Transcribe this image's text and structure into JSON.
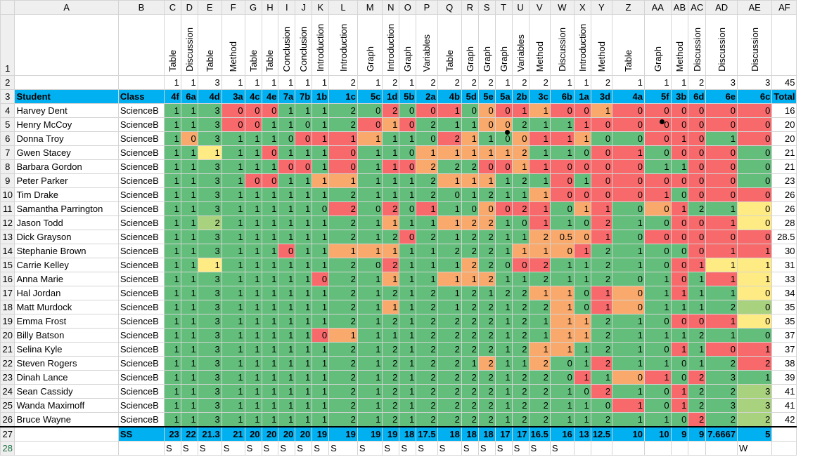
{
  "columns": [
    "A",
    "B",
    "C",
    "D",
    "E",
    "F",
    "G",
    "H",
    "I",
    "J",
    "K",
    "L",
    "M",
    "N",
    "O",
    "P",
    "Q",
    "R",
    "S",
    "T",
    "U",
    "V",
    "W",
    "X",
    "Y",
    "Z",
    "AA",
    "AB",
    "AC",
    "AD",
    "AE",
    "AF"
  ],
  "question_types": [
    "",
    "",
    "Table",
    "Discussion",
    "Table",
    "Method",
    "Table",
    "Table",
    "Conclusion",
    "Conclusion",
    "Introduction",
    "Introduction",
    "Graph",
    "Introduction",
    "Graph",
    "Variables",
    "Table",
    "Graph",
    "Graph",
    "Graph",
    "Variables",
    "Method",
    "Discussion",
    "Introduction",
    "Method",
    "Table",
    "Graph",
    "Method",
    "Discussion",
    "Discussion",
    "Discussion",
    ""
  ],
  "max_marks": [
    "",
    "",
    "1",
    "1",
    "3",
    "1",
    "1",
    "1",
    "1",
    "1",
    "1",
    "2",
    "1",
    "2",
    "1",
    "2",
    "2",
    "2",
    "2",
    "1",
    "2",
    "2",
    "1",
    "1",
    "2",
    "1",
    "1",
    "1",
    "2",
    "3",
    "3",
    "45"
  ],
  "header": {
    "student": "Student",
    "class": "Class",
    "codes": [
      "4f",
      "6a",
      "4d",
      "3a",
      "4c",
      "4e",
      "7a",
      "7b",
      "1b",
      "1c",
      "5c",
      "1d",
      "5b",
      "2a",
      "4b",
      "5d",
      "5e",
      "5a",
      "2b",
      "3c",
      "6b",
      "1a",
      "3d",
      "4a",
      "5f",
      "3b",
      "6d",
      "6e",
      "6c"
    ],
    "total": "Total"
  },
  "students": [
    {
      "row": "4",
      "name": "Harvey Dent",
      "class": "ScienceB",
      "scores": [
        "1",
        "1",
        "3",
        "0",
        "0",
        "0",
        "1",
        "1",
        "1",
        "2",
        "0",
        "2",
        "0",
        "0",
        "1",
        "0",
        "0",
        "0",
        "1",
        "1",
        "0",
        "0",
        "1",
        "0",
        "0",
        "0",
        "0",
        "0",
        "0"
      ],
      "colors": "gggrrrgggggrgrrgorrorrorrrrrr",
      "total": "16"
    },
    {
      "row": "5",
      "name": "Henry McCoy",
      "class": "ScienceB",
      "scores": [
        "1",
        "1",
        "3",
        "0",
        "0",
        "1",
        "1",
        "0",
        "1",
        "2",
        "0",
        "1",
        "0",
        "2",
        "1",
        "1",
        "0",
        "0",
        "2",
        "1",
        "1",
        "1",
        "0",
        "0",
        "0",
        "0",
        "0",
        "0",
        "0"
      ],
      "colors": "gggrrgggggrorgggoogggrrrrrrrr",
      "total": "20"
    },
    {
      "row": "6",
      "name": "Donna Troy",
      "class": "ScienceB",
      "scores": [
        "1",
        "0",
        "3",
        "1",
        "1",
        "1",
        "0",
        "0",
        "1",
        "1",
        "1",
        "1",
        "1",
        "0",
        "2",
        "1",
        "1",
        "0",
        "0",
        "1",
        "1",
        "1",
        "0",
        "0",
        "0",
        "1",
        "0",
        "1",
        "0"
      ],
      "colors": "gogggggrrrogggroggorroggrrrgryr",
      "total": "20"
    },
    {
      "row": "7",
      "name": "Gwen Stacey",
      "class": "ScienceB",
      "scores": [
        "1",
        "1",
        "1",
        "1",
        "1",
        "0",
        "1",
        "1",
        "1",
        "0",
        "1",
        "1",
        "0",
        "1",
        "1",
        "1",
        "1",
        "1",
        "2",
        "1",
        "1",
        "0",
        "0",
        "1",
        "0",
        "0",
        "0",
        "0",
        "0"
      ],
      "colors": "ggyggrgggrgggoooooogggrrgrrr",
      "total": "21"
    },
    {
      "row": "8",
      "name": "Barbara Gordon",
      "class": "ScienceB",
      "scores": [
        "1",
        "1",
        "3",
        "1",
        "1",
        "1",
        "0",
        "0",
        "1",
        "0",
        "1",
        "1",
        "0",
        "2",
        "2",
        "2",
        "0",
        "0",
        "1",
        "1",
        "0",
        "0",
        "0",
        "0",
        "1",
        "1",
        "0",
        "0",
        "0"
      ],
      "colors": "ggggggrrgrgrroggrrorrrrrggrr",
      "total": "21"
    },
    {
      "row": "9",
      "name": "Peter Parker",
      "class": "ScienceB",
      "scores": [
        "1",
        "1",
        "3",
        "1",
        "0",
        "0",
        "1",
        "1",
        "1",
        "1",
        "1",
        "1",
        "1",
        "2",
        "1",
        "1",
        "1",
        "1",
        "2",
        "1",
        "0",
        "1",
        "0",
        "0",
        "0",
        "0",
        "0",
        "0",
        "0"
      ],
      "colors": "ggggrrggooggggooogggrgrrrrrr",
      "total": "23"
    },
    {
      "row": "10",
      "name": "Tim Drake",
      "class": "ScienceB",
      "scores": [
        "1",
        "1",
        "3",
        "1",
        "1",
        "1",
        "1",
        "1",
        "1",
        "2",
        "1",
        "1",
        "1",
        "2",
        "0",
        "1",
        "2",
        "1",
        "1",
        "1",
        "0",
        "0",
        "0",
        "0",
        "1",
        "0",
        "0",
        "0",
        "0"
      ],
      "colors": "gggggggggggggggggggorrrrrgrrrr",
      "total": "26"
    },
    {
      "row": "11",
      "name": "Samantha Parrington",
      "class": "ScienceB",
      "scores": [
        "1",
        "1",
        "3",
        "1",
        "1",
        "1",
        "1",
        "1",
        "0",
        "2",
        "0",
        "2",
        "0",
        "1",
        "1",
        "0",
        "0",
        "0",
        "2",
        "1",
        "0",
        "1",
        "1",
        "0",
        "0",
        "1",
        "2",
        "1",
        "0"
      ],
      "colors": "gggggggggrgrgrggorrrgorgorggyr",
      "total": "26"
    },
    {
      "row": "12",
      "name": "Jason Todd",
      "class": "ScienceB",
      "scores": [
        "1",
        "1",
        "2",
        "1",
        "1",
        "1",
        "1",
        "1",
        "1",
        "2",
        "1",
        "1",
        "1",
        "1",
        "1",
        "2",
        "2",
        "1",
        "0",
        "1",
        "1",
        "0",
        "2",
        "1",
        "0",
        "0",
        "0",
        "1",
        "0"
      ],
      "colors": "gglggggggggoggoooggrggrggrrryr",
      "total": "28"
    },
    {
      "row": "13",
      "name": "Dick Grayson",
      "class": "ScienceB",
      "scores": [
        "1",
        "1",
        "3",
        "1",
        "1",
        "1",
        "1",
        "1",
        "1",
        "2",
        "1",
        "2",
        "0",
        "2",
        "1",
        "2",
        "2",
        "1",
        "1",
        "2",
        "0.5",
        "0",
        "1",
        "0",
        "0",
        "0",
        "0",
        "0",
        "0"
      ],
      "colors": "ggggggggggggrggggggooorgrrrrrr",
      "total": "28.5"
    },
    {
      "row": "14",
      "name": "Stephanie Brown",
      "class": "ScienceB",
      "scores": [
        "1",
        "1",
        "3",
        "1",
        "1",
        "1",
        "0",
        "1",
        "1",
        "1",
        "1",
        "1",
        "1",
        "1",
        "2",
        "2",
        "2",
        "1",
        "1",
        "1",
        "0",
        "1",
        "2",
        "1",
        "0",
        "0",
        "0",
        "1",
        "1"
      ],
      "colors": "ggggggrggoooggggggooorggggrrryy",
      "total": "30"
    },
    {
      "row": "15",
      "name": "Carrie Kelley",
      "class": "ScienceB",
      "scores": [
        "1",
        "1",
        "1",
        "1",
        "1",
        "1",
        "1",
        "1",
        "1",
        "2",
        "0",
        "2",
        "1",
        "1",
        "1",
        "2",
        "2",
        "0",
        "0",
        "2",
        "1",
        "1",
        "2",
        "1",
        "0",
        "0",
        "1",
        "1",
        "1"
      ],
      "colors": "ggyggggggggrgggoggrrgggggrryy",
      "total": "31"
    },
    {
      "row": "16",
      "name": "Anna Marie",
      "class": "ScienceB",
      "scores": [
        "1",
        "1",
        "3",
        "1",
        "1",
        "1",
        "1",
        "1",
        "0",
        "2",
        "1",
        "1",
        "1",
        "1",
        "1",
        "1",
        "2",
        "1",
        "1",
        "2",
        "1",
        "1",
        "2",
        "0",
        "1",
        "0",
        "1",
        "1",
        "1"
      ],
      "colors": "ggggggggrggoggoooggggggggrgryy",
      "total": "33"
    },
    {
      "row": "17",
      "name": "Hal Jordan",
      "class": "ScienceB",
      "scores": [
        "1",
        "1",
        "3",
        "1",
        "1",
        "1",
        "1",
        "1",
        "1",
        "2",
        "1",
        "2",
        "1",
        "2",
        "1",
        "2",
        "1",
        "2",
        "2",
        "1",
        "1",
        "0",
        "1",
        "0",
        "1",
        "1",
        "1",
        "1",
        "0"
      ],
      "colors": "gggggggggggggggggggoogrogrggyr",
      "total": "34"
    },
    {
      "row": "18",
      "name": "Matt Murdock",
      "class": "ScienceB",
      "scores": [
        "1",
        "1",
        "3",
        "1",
        "1",
        "1",
        "1",
        "1",
        "1",
        "2",
        "1",
        "1",
        "1",
        "2",
        "1",
        "2",
        "2",
        "1",
        "2",
        "2",
        "1",
        "0",
        "1",
        "0",
        "1",
        "1",
        "1",
        "2",
        "0"
      ],
      "colors": "gggggggggggoggggggggogrogggglr",
      "total": "35"
    },
    {
      "row": "19",
      "name": "Emma Frost",
      "class": "ScienceB",
      "scores": [
        "1",
        "1",
        "3",
        "1",
        "1",
        "1",
        "1",
        "1",
        "1",
        "2",
        "1",
        "2",
        "1",
        "2",
        "2",
        "2",
        "2",
        "1",
        "2",
        "1",
        "1",
        "1",
        "2",
        "1",
        "0",
        "0",
        "0",
        "1",
        "0"
      ],
      "colors": "ggggggggggggggggggggoogggrrryr",
      "total": "35"
    },
    {
      "row": "20",
      "name": "Billy Batson",
      "class": "ScienceB",
      "scores": [
        "1",
        "1",
        "3",
        "1",
        "1",
        "1",
        "1",
        "1",
        "0",
        "1",
        "1",
        "1",
        "1",
        "2",
        "2",
        "2",
        "2",
        "1",
        "2",
        "1",
        "1",
        "1",
        "2",
        "1",
        "1",
        "1",
        "2",
        "1",
        "0"
      ],
      "colors": "ggggggggroggggggggggoogggggggyr",
      "total": "37"
    },
    {
      "row": "21",
      "name": "Selina Kyle",
      "class": "ScienceB",
      "scores": [
        "1",
        "1",
        "3",
        "1",
        "1",
        "1",
        "1",
        "1",
        "1",
        "2",
        "1",
        "2",
        "1",
        "2",
        "2",
        "2",
        "2",
        "1",
        "2",
        "1",
        "1",
        "1",
        "2",
        "1",
        "0",
        "1",
        "1",
        "0",
        "1"
      ],
      "colors": "gggggggggggggggggggooggggrgrrg",
      "total": "37"
    },
    {
      "row": "22",
      "name": "Steven Rogers",
      "class": "ScienceB",
      "scores": [
        "1",
        "1",
        "3",
        "1",
        "1",
        "1",
        "1",
        "1",
        "1",
        "2",
        "1",
        "2",
        "1",
        "2",
        "2",
        "1",
        "2",
        "1",
        "1",
        "2",
        "0",
        "1",
        "2",
        "1",
        "1",
        "0",
        "1",
        "2",
        "2"
      ],
      "colors": "ggggggggggggggggoggoggrgggggrgll",
      "total": "38"
    },
    {
      "row": "23",
      "name": "Dinah Lance",
      "class": "ScienceB",
      "scores": [
        "1",
        "1",
        "3",
        "1",
        "1",
        "1",
        "1",
        "1",
        "1",
        "2",
        "1",
        "2",
        "1",
        "2",
        "2",
        "2",
        "2",
        "1",
        "2",
        "2",
        "0",
        "1",
        "1",
        "0",
        "1",
        "0",
        "2",
        "3",
        "1"
      ],
      "colors": "gggggggggggggggggggggrgorgrgggy",
      "total": "39"
    },
    {
      "row": "24",
      "name": "Sean Cassidy",
      "class": "ScienceB",
      "scores": [
        "1",
        "1",
        "3",
        "1",
        "1",
        "1",
        "1",
        "1",
        "1",
        "2",
        "1",
        "2",
        "1",
        "2",
        "2",
        "2",
        "2",
        "1",
        "2",
        "2",
        "1",
        "0",
        "2",
        "1",
        "0",
        "1",
        "2",
        "2",
        "3"
      ],
      "colors": "ggggggggggggggggggggggrggrgglg",
      "total": "41"
    },
    {
      "row": "25",
      "name": "Wanda Maximoff",
      "class": "ScienceB",
      "scores": [
        "1",
        "1",
        "3",
        "1",
        "1",
        "1",
        "1",
        "1",
        "1",
        "2",
        "1",
        "2",
        "1",
        "2",
        "2",
        "2",
        "2",
        "1",
        "2",
        "2",
        "1",
        "1",
        "0",
        "1",
        "0",
        "1",
        "2",
        "3",
        "3"
      ],
      "colors": "gggggggggggggggggggggggrgrgglg",
      "total": "41"
    },
    {
      "row": "26",
      "name": "Bruce Wayne",
      "class": "ScienceB",
      "scores": [
        "1",
        "1",
        "3",
        "1",
        "1",
        "1",
        "1",
        "1",
        "1",
        "2",
        "1",
        "2",
        "1",
        "2",
        "2",
        "2",
        "2",
        "1",
        "2",
        "2",
        "1",
        "1",
        "2",
        "1",
        "1",
        "0",
        "2",
        "2",
        "2"
      ],
      "colors": "ggggggggggggggggggggggggggrgll",
      "total": "42"
    }
  ],
  "summary": {
    "label": "SS",
    "values": [
      "23",
      "22",
      "21.3",
      "21",
      "20",
      "20",
      "20",
      "20",
      "19",
      "19",
      "19",
      "19",
      "18",
      "17.5",
      "18",
      "18",
      "18",
      "17",
      "17",
      "16.5",
      "16",
      "13",
      "12.5",
      "10",
      "10",
      "9",
      "9",
      "7.6667",
      "5"
    ]
  },
  "row28": [
    "S",
    "S",
    "S",
    "S",
    "S",
    "S",
    "S",
    "S",
    "S",
    "S",
    "S",
    "S",
    "S",
    "S",
    "S",
    "S",
    "S",
    "S",
    "S",
    "S",
    "S",
    "",
    "",
    "",
    "",
    "",
    "",
    "",
    "W"
  ],
  "colors": {
    "green": "#63be7b",
    "orange": "#f8a96b",
    "red": "#f8696b",
    "yellow": "#ffeb84",
    "light_green": "#a9d27f",
    "header_blue": "#00b0f0"
  }
}
